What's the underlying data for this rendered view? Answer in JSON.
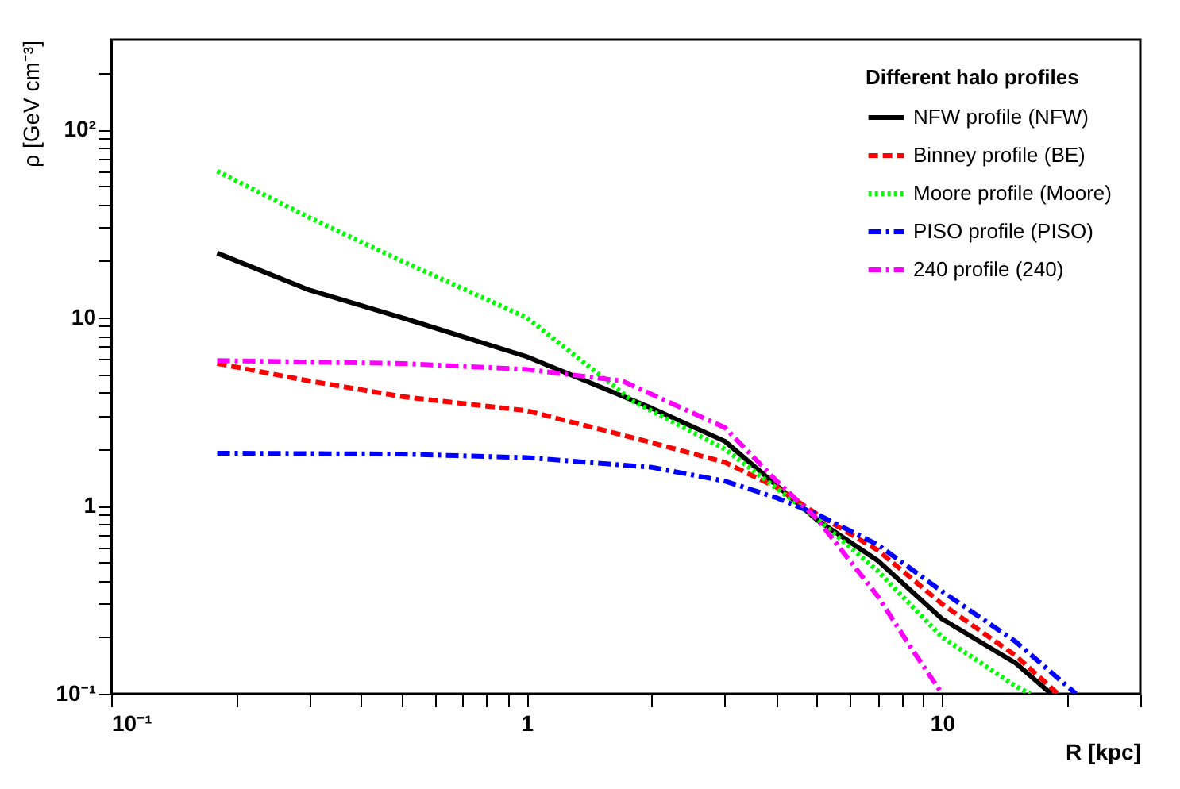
{
  "chart_data": {
    "type": "line",
    "xlabel": "R [kpc]",
    "ylabel": "ρ [GeV cm⁻³]",
    "legend_title": "Different halo profiles",
    "log": "xy",
    "grid": false,
    "legend": "top right",
    "xlim": [
      0.1,
      30
    ],
    "ylim": [
      0.1,
      300
    ],
    "xticks": [
      {
        "value": 0.1,
        "label": "10⁻¹"
      },
      {
        "value": 0.2,
        "label": null
      },
      {
        "value": 0.3,
        "label": null
      },
      {
        "value": 0.4,
        "label": null
      },
      {
        "value": 0.5,
        "label": null
      },
      {
        "value": 0.6,
        "label": null
      },
      {
        "value": 0.7,
        "label": null
      },
      {
        "value": 0.8,
        "label": null
      },
      {
        "value": 0.9,
        "label": null
      },
      1,
      {
        "value": 2,
        "label": null
      },
      {
        "value": 3,
        "label": null
      },
      {
        "value": 4,
        "label": null
      },
      {
        "value": 5,
        "label": null
      },
      {
        "value": 6,
        "label": null
      },
      {
        "value": 7,
        "label": null
      },
      {
        "value": 8,
        "label": null
      },
      {
        "value": 9,
        "label": null
      },
      10,
      {
        "value": 20,
        "label": null
      },
      {
        "value": 30,
        "label": null
      }
    ],
    "yticks": [
      {
        "value": 0.1,
        "label": "10⁻¹"
      },
      {
        "value": 0.2,
        "label": null
      },
      {
        "value": 0.3,
        "label": null
      },
      {
        "value": 0.4,
        "label": null
      },
      {
        "value": 0.5,
        "label": null
      },
      {
        "value": 0.6,
        "label": null
      },
      {
        "value": 0.7,
        "label": null
      },
      {
        "value": 0.8,
        "label": null
      },
      {
        "value": 0.9,
        "label": null
      },
      1,
      {
        "value": 2,
        "label": null
      },
      {
        "value": 3,
        "label": null
      },
      {
        "value": 4,
        "label": null
      },
      {
        "value": 5,
        "label": null
      },
      {
        "value": 6,
        "label": null
      },
      {
        "value": 7,
        "label": null
      },
      {
        "value": 8,
        "label": null
      },
      {
        "value": 9,
        "label": null
      },
      10,
      {
        "value": 20,
        "label": null
      },
      {
        "value": 30,
        "label": null
      },
      {
        "value": 40,
        "label": null
      },
      {
        "value": 50,
        "label": null
      },
      {
        "value": 60,
        "label": null
      },
      {
        "value": 70,
        "label": null
      },
      {
        "value": 80,
        "label": null
      },
      {
        "value": 90,
        "label": null
      },
      {
        "value": 100,
        "label": "10²"
      },
      {
        "value": 200,
        "label": null
      }
    ],
    "series": [
      {
        "name": "NFW profile (NFW)",
        "color": "#000000",
        "line_style": "solid",
        "x": [
          0.18,
          0.3,
          0.5,
          1,
          2,
          3,
          5,
          7,
          10,
          15,
          18.3
        ],
        "values": [
          22,
          14,
          10,
          6.2,
          3.3,
          2.2,
          0.84,
          0.51,
          0.25,
          0.146,
          0.1
        ]
      },
      {
        "name": "Binney profile (BE)",
        "color": "#ff0000",
        "line_style": "dashed",
        "x": [
          0.18,
          0.3,
          0.5,
          1,
          1.8,
          3,
          4,
          5,
          7,
          10,
          15,
          19
        ],
        "values": [
          5.7,
          4.6,
          3.8,
          3.2,
          2.3,
          1.7,
          1.25,
          0.9,
          0.58,
          0.3,
          0.16,
          0.1
        ]
      },
      {
        "name": "Moore profile (Moore)",
        "color": "#00ff00",
        "line_style": "dotted",
        "x": [
          0.18,
          0.3,
          0.5,
          1,
          1.8,
          3,
          5,
          7,
          10,
          15,
          16.3
        ],
        "values": [
          60,
          34,
          20,
          10,
          3.6,
          2.0,
          0.85,
          0.45,
          0.2,
          0.11,
          0.1
        ]
      },
      {
        "name": "PISO profile (PISO)",
        "color": "#0000ff",
        "line_style": "dashdot",
        "x": [
          0.18,
          0.5,
          1,
          2,
          3,
          4,
          5,
          7,
          10,
          15,
          21
        ],
        "values": [
          1.9,
          1.88,
          1.8,
          1.6,
          1.35,
          1.1,
          0.9,
          0.62,
          0.35,
          0.19,
          0.1
        ]
      },
      {
        "name": "240 profile (240)",
        "color": "#ff00ff",
        "line_style": "dashdot",
        "x": [
          0.18,
          0.5,
          1,
          1.7,
          3,
          4,
          5,
          7,
          8.5,
          10
        ],
        "values": [
          5.9,
          5.7,
          5.3,
          4.6,
          2.6,
          1.35,
          0.85,
          0.33,
          0.17,
          0.1
        ]
      }
    ]
  }
}
